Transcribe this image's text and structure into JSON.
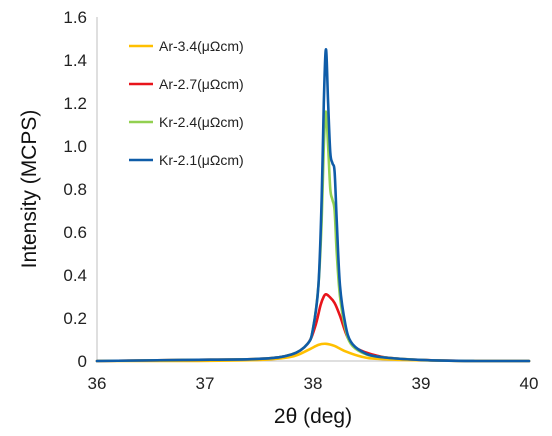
{
  "chart_data": {
    "type": "line",
    "title": "",
    "xlabel": "2θ (deg)",
    "ylabel": "Intensity (MCPS)",
    "xlim": [
      36,
      40
    ],
    "ylim": [
      0,
      1.6
    ],
    "x_ticks": [
      36,
      37,
      38,
      39,
      40
    ],
    "y_ticks": [
      0,
      0.2,
      0.4,
      0.6,
      0.8,
      1.0,
      1.2,
      1.4,
      1.6
    ],
    "x_tick_labels": [
      "36",
      "37",
      "38",
      "39",
      "40"
    ],
    "y_tick_labels": [
      "0",
      "0.2",
      "0.4",
      "0.6",
      "0.8",
      "1.0",
      "1.2",
      "1.4",
      "1.6"
    ],
    "grid": false,
    "legend_position": "top-left",
    "series": [
      {
        "name": "Ar-3.4(μΩcm)",
        "color": "#FFC000",
        "x": [
          36.0,
          36.8,
          37.5,
          37.8,
          37.95,
          38.05,
          38.12,
          38.2,
          38.3,
          38.45,
          38.6,
          39.0,
          39.5,
          40.0
        ],
        "y": [
          0.0,
          0.0,
          0.005,
          0.02,
          0.05,
          0.075,
          0.08,
          0.07,
          0.045,
          0.02,
          0.01,
          0.003,
          0.0,
          0.0
        ]
      },
      {
        "name": "Ar-2.7(μΩcm)",
        "color": "#E8141B",
        "x": [
          36.0,
          36.8,
          37.5,
          37.8,
          37.95,
          38.02,
          38.07,
          38.1,
          38.12,
          38.15,
          38.2,
          38.25,
          38.32,
          38.4,
          38.55,
          38.7,
          39.0,
          39.5,
          40.0
        ],
        "y": [
          0.0,
          0.005,
          0.01,
          0.03,
          0.08,
          0.16,
          0.26,
          0.3,
          0.31,
          0.3,
          0.27,
          0.21,
          0.11,
          0.06,
          0.03,
          0.015,
          0.005,
          0.0,
          0.0
        ]
      },
      {
        "name": "Kr-2.4(μΩcm)",
        "color": "#92D050",
        "x": [
          36.0,
          36.8,
          37.5,
          37.8,
          37.95,
          38.0,
          38.05,
          38.08,
          38.1,
          38.12,
          38.14,
          38.16,
          38.18,
          38.2,
          38.22,
          38.25,
          38.3,
          38.35,
          38.45,
          38.6,
          39.0,
          39.5,
          40.0
        ],
        "y": [
          0.0,
          0.005,
          0.01,
          0.03,
          0.08,
          0.15,
          0.35,
          0.65,
          1.0,
          1.16,
          1.0,
          0.8,
          0.75,
          0.7,
          0.5,
          0.3,
          0.15,
          0.08,
          0.04,
          0.02,
          0.005,
          0.0,
          0.0
        ]
      },
      {
        "name": "Kr-2.1(μΩcm)",
        "color": "#0F5CA8",
        "x": [
          36.0,
          36.8,
          37.5,
          37.8,
          37.95,
          38.0,
          38.05,
          38.08,
          38.1,
          38.12,
          38.14,
          38.16,
          38.18,
          38.2,
          38.22,
          38.25,
          38.3,
          38.35,
          38.45,
          38.6,
          39.0,
          39.5,
          40.0
        ],
        "y": [
          0.0,
          0.005,
          0.01,
          0.03,
          0.08,
          0.15,
          0.35,
          0.75,
          1.2,
          1.45,
          1.2,
          0.97,
          0.92,
          0.88,
          0.65,
          0.35,
          0.17,
          0.09,
          0.045,
          0.02,
          0.005,
          0.0,
          0.0
        ]
      }
    ]
  }
}
